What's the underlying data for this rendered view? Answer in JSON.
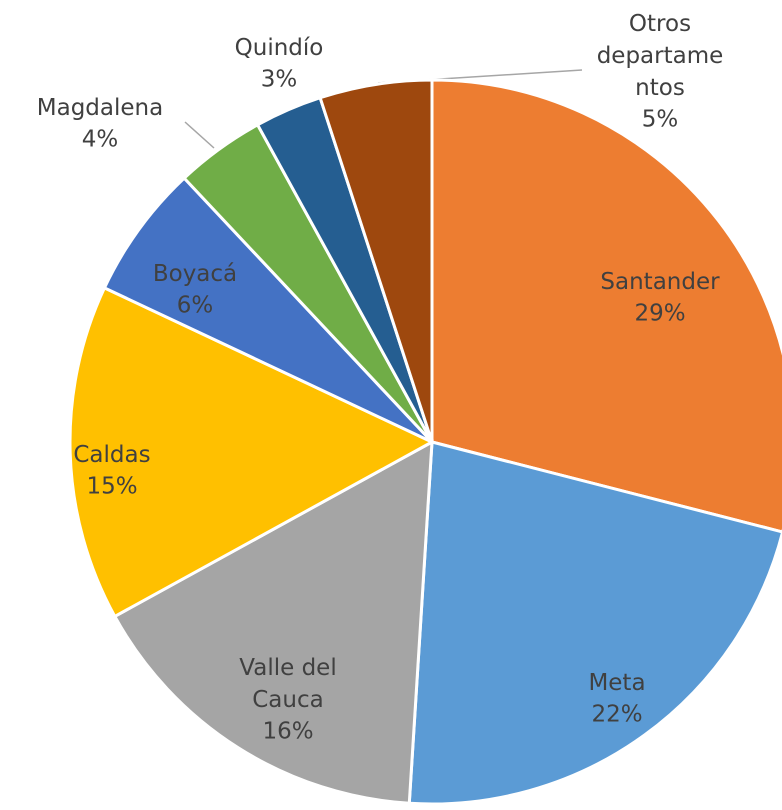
{
  "chart_data": {
    "type": "pie",
    "categories": [
      "Santander",
      "Meta",
      "Valle del Cauca",
      "Caldas",
      "Boyacá",
      "Magdalena",
      "Quindío",
      "Otros departamentos"
    ],
    "values": [
      29,
      22,
      16,
      15,
      6,
      4,
      3,
      5
    ],
    "value_labels": [
      "29%",
      "22%",
      "16%",
      "15%",
      "6%",
      "4%",
      "3%",
      "5%"
    ],
    "colors": [
      "#ED7D31",
      "#5B9BD5",
      "#A5A5A5",
      "#FFC000",
      "#4472C4",
      "#70AD47",
      "#255E91",
      "#9E480E"
    ]
  }
}
